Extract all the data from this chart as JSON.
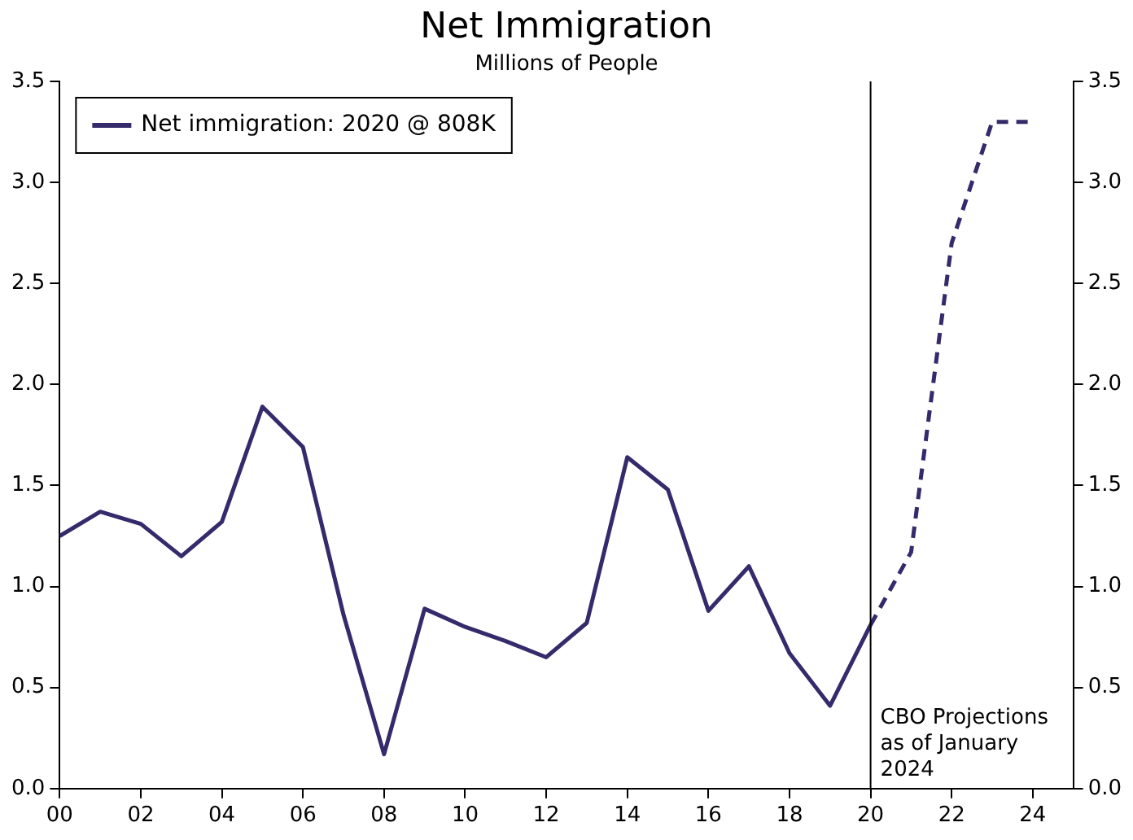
{
  "chart_data": {
    "type": "line",
    "title": "Net Immigration",
    "subtitle": "Millions of People",
    "series": [
      {
        "name": "Net immigration: 2020 @ 808K",
        "color": "#352a6b",
        "line_style": "solid",
        "x": [
          2000,
          2001,
          2002,
          2003,
          2004,
          2005,
          2006,
          2007,
          2008,
          2009,
          2010,
          2011,
          2012,
          2013,
          2014,
          2015,
          2016,
          2017,
          2018,
          2019,
          2020
        ],
        "values": [
          1.25,
          1.37,
          1.31,
          1.15,
          1.32,
          1.89,
          1.69,
          0.86,
          0.17,
          0.89,
          0.8,
          0.73,
          0.65,
          0.82,
          1.64,
          1.48,
          0.88,
          1.1,
          0.67,
          0.41,
          0.81
        ]
      },
      {
        "color": "#352a6b",
        "line_style": "dashed",
        "x": [
          2020,
          2021,
          2022,
          2023,
          2024
        ],
        "values": [
          0.81,
          1.17,
          2.7,
          3.3,
          3.3
        ]
      }
    ],
    "xlim": [
      2000,
      2025
    ],
    "xticks": [
      {
        "value": 2000,
        "label": "00"
      },
      {
        "value": 2002,
        "label": "02"
      },
      {
        "value": 2004,
        "label": "04"
      },
      {
        "value": 2006,
        "label": "06"
      },
      {
        "value": 2008,
        "label": "08"
      },
      {
        "value": 2010,
        "label": "10"
      },
      {
        "value": 2012,
        "label": "12"
      },
      {
        "value": 2014,
        "label": "14"
      },
      {
        "value": 2016,
        "label": "16"
      },
      {
        "value": 2018,
        "label": "18"
      },
      {
        "value": 2020,
        "label": "20"
      },
      {
        "value": 2022,
        "label": "22"
      },
      {
        "value": 2024,
        "label": "24"
      }
    ],
    "ylim": [
      0,
      3.5
    ],
    "yticks": [
      {
        "value": 0,
        "label": "0.0"
      },
      {
        "value": 0.5,
        "label": "0.5"
      },
      {
        "value": 1,
        "label": "1.0"
      },
      {
        "value": 1.5,
        "label": "1.5"
      },
      {
        "value": 2,
        "label": "2.0"
      },
      {
        "value": 2.5,
        "label": "2.5"
      },
      {
        "value": 3,
        "label": "3.0"
      },
      {
        "value": 3.5,
        "label": "3.5"
      }
    ],
    "y2lim": [
      0,
      3.5
    ],
    "y2ticks": [
      {
        "value": 0,
        "label": "0.0"
      },
      {
        "value": 0.5,
        "label": "0.5"
      },
      {
        "value": 1,
        "label": "1.0"
      },
      {
        "value": 1.5,
        "label": "1.5"
      },
      {
        "value": 2,
        "label": "2.0"
      },
      {
        "value": 2.5,
        "label": "2.5"
      },
      {
        "value": 3,
        "label": "3.0"
      },
      {
        "value": 3.5,
        "label": "3.5"
      }
    ],
    "ref_lines": [
      {
        "axis": "x",
        "value": 2020,
        "label": "CBO Projections as of January 2024",
        "color": "#000000"
      }
    ],
    "grid": false,
    "legend": "top left",
    "marker": "none"
  }
}
